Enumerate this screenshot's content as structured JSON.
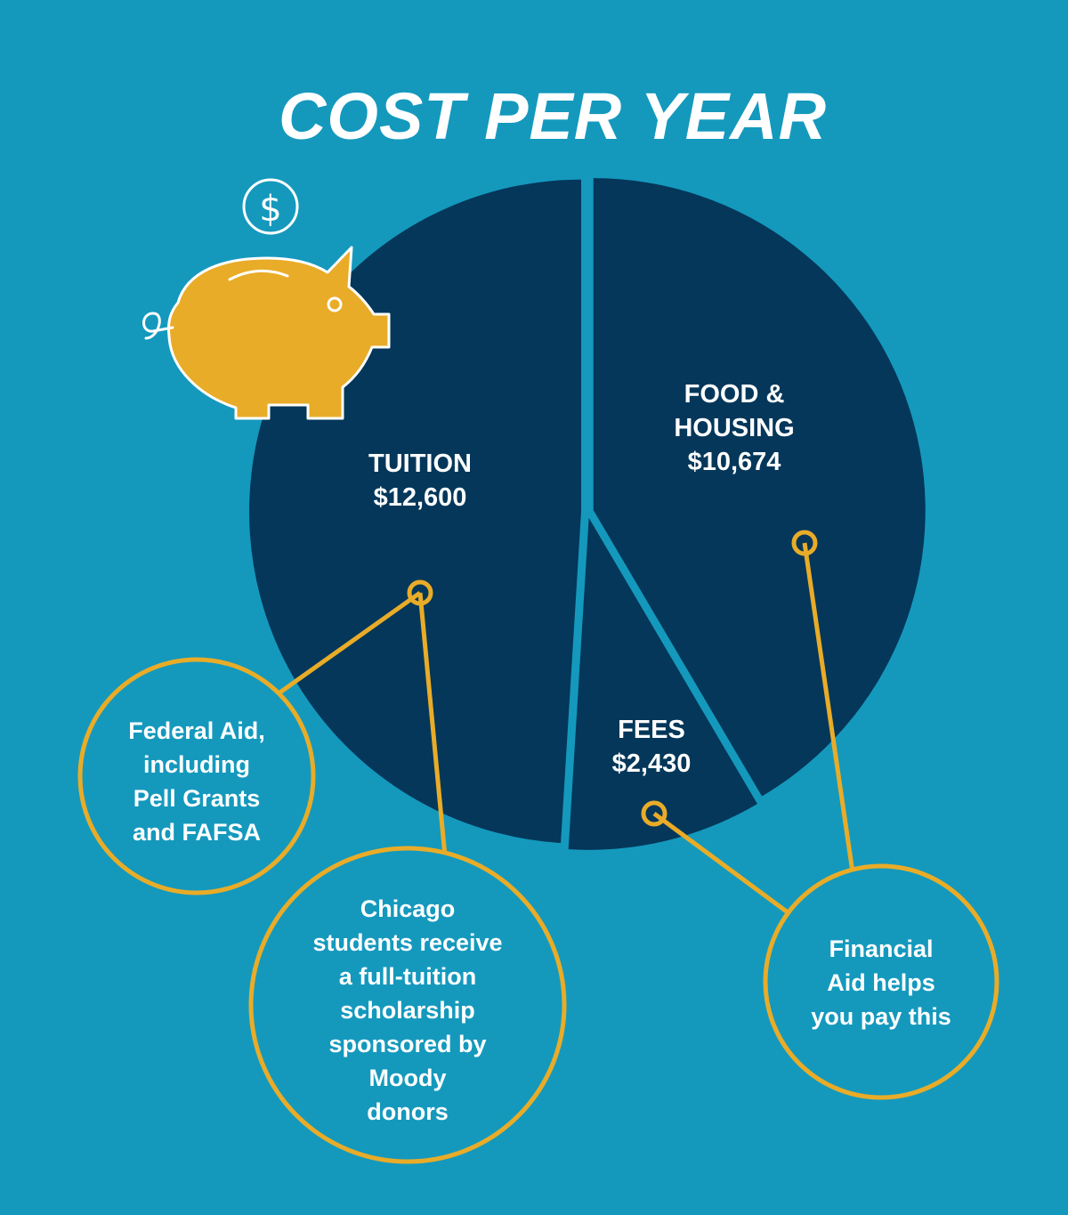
{
  "title": "COST PER YEAR",
  "colors": {
    "background": "#1499bd",
    "pie": "#04375a",
    "accent": "#e9ac28",
    "text": "#ffffff"
  },
  "icons": [
    "dollar-coin-icon",
    "piggy-bank-icon"
  ],
  "chart_data": {
    "type": "pie",
    "title": "COST PER YEAR",
    "slices": [
      {
        "label": "TUITION",
        "value": 12600,
        "value_label": "$12,600"
      },
      {
        "label": "FEES",
        "value": 2430,
        "value_label": "$2,430"
      },
      {
        "label": "FOOD & HOUSING",
        "value": 10674,
        "value_label": "$10,674"
      }
    ]
  },
  "labels": {
    "tuition_name": "TUITION",
    "tuition_value": "$12,600",
    "food_line1": "FOOD &",
    "food_line2": "HOUSING",
    "food_value": "$10,674",
    "fees_name": "FEES",
    "fees_value": "$2,430"
  },
  "callouts": {
    "federal": [
      "Federal Aid,",
      "including",
      "Pell Grants",
      "and FAFSA"
    ],
    "chicago": [
      "Chicago",
      "students receive",
      "a full-tuition",
      "scholarship",
      "sponsored by",
      "Moody",
      "donors"
    ],
    "financial": [
      "Financial",
      "Aid helps",
      "you pay this"
    ]
  }
}
